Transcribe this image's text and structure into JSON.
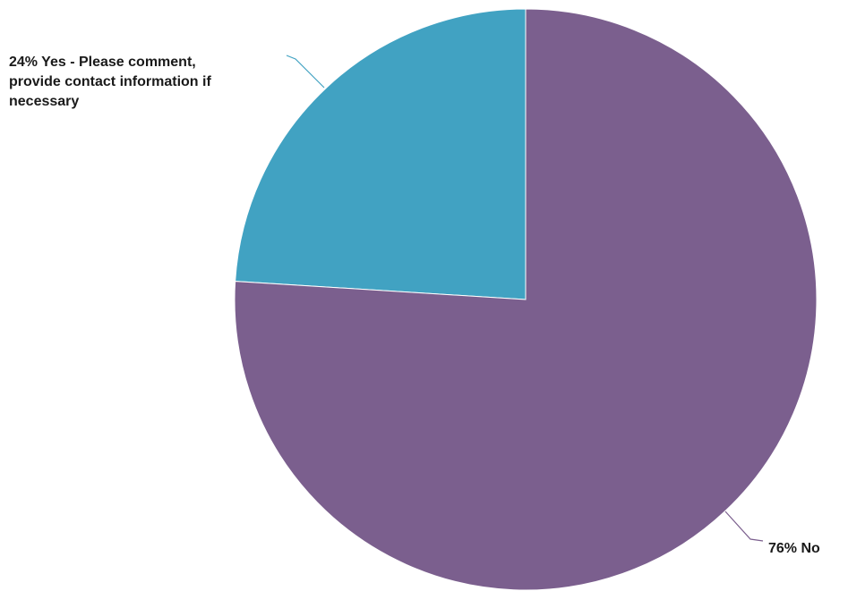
{
  "chart_data": {
    "type": "pie",
    "slices": [
      {
        "label_lines": [
          "24% Yes - Please comment,",
          "provide contact information if",
          "necessary"
        ],
        "percent": 24,
        "color": "#41a2c2"
      },
      {
        "label_lines": [
          "76% No"
        ],
        "percent": 76,
        "color": "#7b5f8e"
      }
    ],
    "start_angle_deg": 0,
    "direction": "counterclockwise"
  }
}
